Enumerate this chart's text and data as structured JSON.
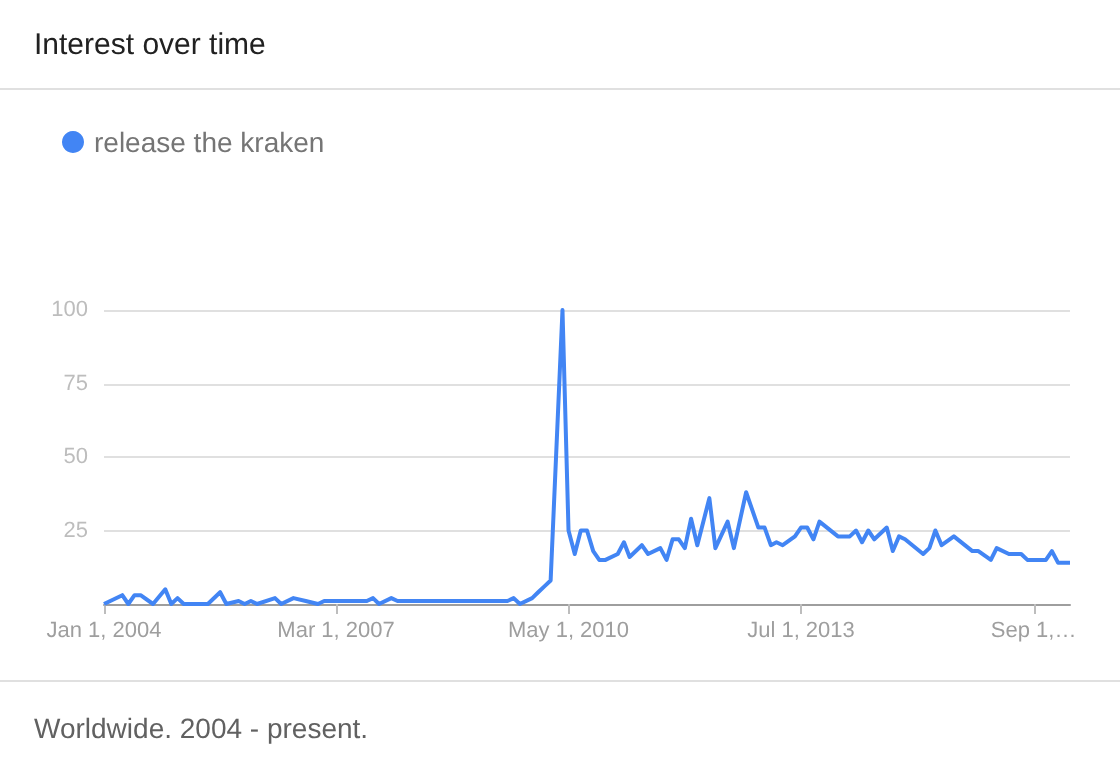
{
  "chart_data": {
    "type": "line",
    "title": "Interest over time",
    "annotations": [
      "Worldwide. 2004 - present."
    ],
    "x": [
      "2004-01",
      "2004-04",
      "2004-05",
      "2004-06",
      "2004-07",
      "2004-09",
      "2004-11",
      "2004-12",
      "2005-01",
      "2005-02",
      "2005-06",
      "2005-08",
      "2005-09",
      "2005-11",
      "2005-12",
      "2006-01",
      "2006-02",
      "2006-05",
      "2006-06",
      "2006-08",
      "2006-10",
      "2006-12",
      "2007-01",
      "2007-08",
      "2007-09",
      "2007-10",
      "2007-12",
      "2008-01",
      "2009-07",
      "2009-08",
      "2009-09",
      "2009-11",
      "2009-12",
      "2010-01",
      "2010-02",
      "2010-04",
      "2010-05",
      "2010-06",
      "2010-07",
      "2010-08",
      "2010-09",
      "2010-10",
      "2010-11",
      "2011-01",
      "2011-02",
      "2011-03",
      "2011-05",
      "2011-06",
      "2011-08",
      "2011-09",
      "2011-10",
      "2011-11",
      "2011-12",
      "2012-01",
      "2012-02",
      "2012-04",
      "2012-05",
      "2012-07",
      "2012-08",
      "2012-10",
      "2012-12",
      "2013-01",
      "2013-02",
      "2013-03",
      "2013-04",
      "2013-06",
      "2013-07",
      "2013-08",
      "2013-09",
      "2013-10",
      "2014-01",
      "2014-03",
      "2014-04",
      "2014-05",
      "2014-06",
      "2014-07",
      "2014-09",
      "2014-10",
      "2014-11",
      "2014-12",
      "2015-03",
      "2015-04",
      "2015-05",
      "2015-06",
      "2015-08",
      "2015-11",
      "2015-12",
      "2016-02",
      "2016-03",
      "2016-05",
      "2016-07",
      "2016-08",
      "2016-11",
      "2016-12",
      "2017-01",
      "2017-03"
    ],
    "series": [
      {
        "name": "release the kraken",
        "color": "#4285f4",
        "values": [
          0,
          3,
          0,
          3,
          3,
          0,
          5,
          0,
          2,
          0,
          0,
          4,
          0,
          1,
          0,
          1,
          0,
          2,
          0,
          2,
          1,
          0,
          1,
          1,
          2,
          0,
          2,
          1,
          1,
          2,
          0,
          2,
          4,
          6,
          8,
          100,
          25,
          17,
          25,
          25,
          18,
          15,
          15,
          17,
          21,
          16,
          20,
          17,
          19,
          15,
          22,
          22,
          19,
          29,
          20,
          36,
          19,
          28,
          19,
          38,
          26,
          26,
          20,
          21,
          20,
          23,
          26,
          26,
          22,
          28,
          23,
          23,
          25,
          21,
          25,
          22,
          26,
          18,
          23,
          22,
          17,
          19,
          25,
          20,
          23,
          18,
          18,
          15,
          19,
          17,
          17,
          15,
          15,
          18,
          14,
          14
        ]
      }
    ],
    "xlim": [
      "2004-01",
      "2017-03"
    ],
    "xticks": [
      {
        "value": "2004-01-01",
        "label": "Jan 1, 2004"
      },
      {
        "value": "2007-03-01",
        "label": "Mar 1, 2007"
      },
      {
        "value": "2010-05-01",
        "label": "May 1, 2010"
      },
      {
        "value": "2013-07-01",
        "label": "Jul 1, 2013"
      },
      {
        "value": "2016-09-01",
        "label": "Sep 1,…"
      }
    ],
    "ylim": [
      0,
      100
    ],
    "yticks": [
      {
        "value": 0,
        "label": null
      },
      25,
      50,
      75,
      100
    ],
    "grid": "y",
    "legend": "top left",
    "marker": "none"
  }
}
